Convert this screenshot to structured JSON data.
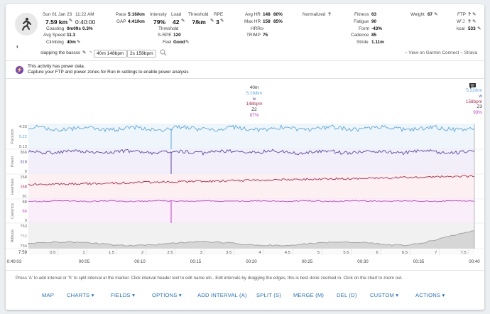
{
  "header": {
    "date": "Sun 01 Jan 23",
    "time": "11:22 AM",
    "distance": "7.59 km",
    "duration": "0:40:00",
    "coasting_label": "Coasting",
    "coasting_value": "0m09s",
    "coasting_pct": "0.3%",
    "avg_speed_label": "Avg Speed",
    "avg_speed_value": "11.3",
    "climbing_label": "Climbing",
    "climbing_value": "40m",
    "pace_label": "Pace",
    "pace_value": "5:16/km",
    "gap_label": "GAP",
    "gap_value": "4:41/km",
    "intensity_label": "Intensity",
    "intensity_value": "79%",
    "load_label": "Load",
    "load_value": "42",
    "threshold_label": "Threshold",
    "threshold_value": "?/km",
    "threshold_sub_label": "Threshold",
    "srpe_label": "S-RPE",
    "srpe_value": "120",
    "feel_label": "Feel",
    "feel_value": "Good",
    "rpe_label": "RPE",
    "rpe_value": "3",
    "avg_hr_label": "Avg HR",
    "avg_hr_value": "148",
    "avg_hr_pct": "80%",
    "max_hr_label": "Max HR",
    "max_hr_value": "158",
    "max_hr_pct": "85%",
    "hrrc_label": "HRRc",
    "hrrc_value": "-",
    "trimp_label": "TRIMP",
    "trimp_value": "75",
    "normalized_label": "Normalized",
    "normalized_value": "?",
    "fitness_label": "Fitness",
    "fitness_value": "63",
    "fatigue_label": "Fatigue",
    "fatigue_value": "90",
    "form_label": "Form",
    "form_value": "-43%",
    "cadence_label": "Cadence",
    "cadence_value": "85",
    "stride_label": "Stride",
    "stride_value": "1.11m",
    "weight_label": "Weight",
    "weight_value": "67",
    "ftp_label": "FTP",
    "ftp_value": "?",
    "wj_label": "W`J",
    "wj_value": "?",
    "kcal_label": "kcal",
    "kcal_value": "533"
  },
  "activity_name": "slapping the bassss",
  "tags": [
    "40m 148bpm",
    "2s 158bpm"
  ],
  "view_links": "~ View on Garmin Connect ~ Strava",
  "banner": {
    "line1": "This activity has power data.",
    "line2": "Capture your FTP and power zones for Run in settings to enable power analysis"
  },
  "marker_tooltip": {
    "time": "40m",
    "pace": "5:16/km",
    "power": "w",
    "hr": "148bpm",
    "zone": "Z2",
    "cadence": "87%"
  },
  "marker_tooltip_right": {
    "pace": "5:22/km",
    "power": "w",
    "hr": "158bpm",
    "zone": "Z3",
    "cadence": "93%"
  },
  "chart_data": {
    "type": "line",
    "x_distance_ticks": [
      "0.5",
      "1",
      "1.5",
      "2",
      "2.5",
      "3",
      "3.5",
      "4",
      "4.5",
      "5",
      "5.5",
      "6",
      "6.5",
      "7",
      "7.5"
    ],
    "x_time_ticks": [
      "0:40:03",
      "00:05",
      "00:10",
      "00:15",
      "00:20",
      "00:25",
      "00:30",
      "00:35",
      "00:40"
    ],
    "distance_label": "7.59",
    "panels": [
      {
        "name": "Pace/km",
        "ticks": [
          "4:33",
          "5:22",
          "5:13"
        ],
        "color": "#5aa8de"
      },
      {
        "name": "Power",
        "ticks": [
          "366",
          "318",
          "0"
        ],
        "color": "#5b46a8"
      },
      {
        "name": "Heartrate",
        "ticks": [
          "158",
          "158",
          "91"
        ],
        "color": "#b5264c"
      },
      {
        "name": "Cadence",
        "ticks": [
          "88",
          "86",
          "0"
        ],
        "color": "#c43fc7"
      },
      {
        "name": "Altitude",
        "ticks": [
          "753",
          "753",
          "734"
        ],
        "color": "#9e9e9e"
      }
    ]
  },
  "help_text": "Press 'A' to add interval or 'S' to split interval at the marker. Click interval header text to edit name etc.. Edit intervals by dragging the edges, this is best done zoomed in. Click on the chart to zoom out.",
  "toolbar": {
    "map": "MAP",
    "charts": "CHARTS",
    "fields": "FIELDS",
    "options": "OPTIONS",
    "add_interval": "ADD INTERVAL (A)",
    "split": "SPLIT (S)",
    "merge": "MERGE (M)",
    "del": "DEL (D)",
    "custom": "CUSTOM",
    "actions": "ACTIONS"
  }
}
